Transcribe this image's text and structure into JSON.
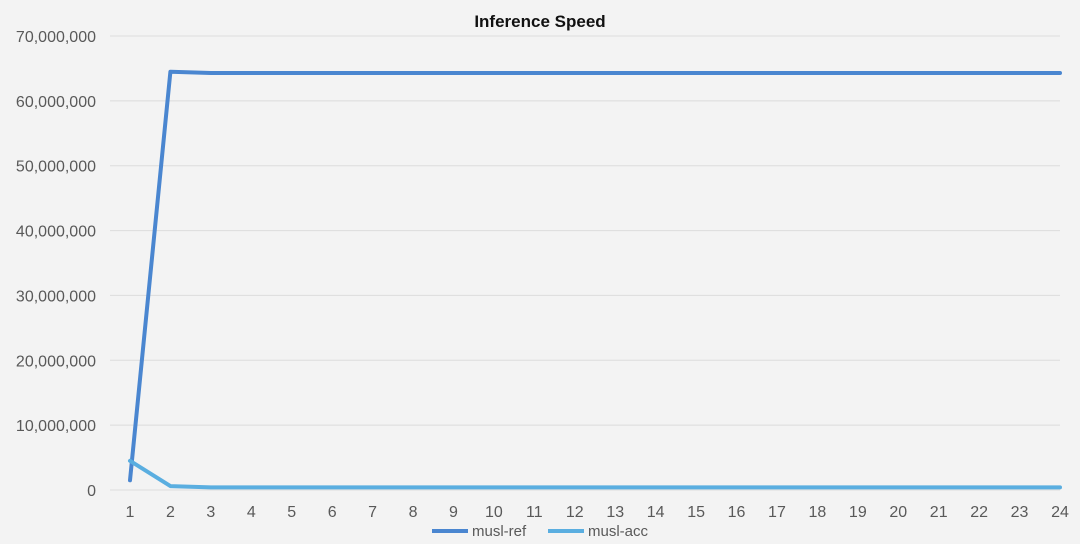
{
  "chart_data": {
    "type": "line",
    "title": "Inference Speed",
    "xlabel": "",
    "ylabel": "",
    "x": [
      "1",
      "2",
      "3",
      "4",
      "5",
      "6",
      "7",
      "8",
      "9",
      "10",
      "11",
      "12",
      "13",
      "14",
      "15",
      "16",
      "17",
      "18",
      "19",
      "20",
      "21",
      "22",
      "23",
      "24"
    ],
    "ylim": [
      0,
      70000000
    ],
    "yticks": [
      0,
      10000000,
      20000000,
      30000000,
      40000000,
      50000000,
      60000000,
      70000000
    ],
    "ytick_labels": [
      "0",
      "10,000,000",
      "20,000,000",
      "30,000,000",
      "40,000,000",
      "50,000,000",
      "60,000,000",
      "70,000,000"
    ],
    "grid": true,
    "legend_position": "bottom",
    "series": [
      {
        "name": "musl-ref",
        "color": "#4a86d0",
        "values": [
          1500000,
          64500000,
          64300000,
          64300000,
          64300000,
          64300000,
          64300000,
          64300000,
          64300000,
          64300000,
          64300000,
          64300000,
          64300000,
          64300000,
          64300000,
          64300000,
          64300000,
          64300000,
          64300000,
          64300000,
          64300000,
          64300000,
          64300000,
          64300000
        ]
      },
      {
        "name": "musl-acc",
        "color": "#5aaee0",
        "values": [
          4500000,
          600000,
          400000,
          400000,
          400000,
          400000,
          400000,
          400000,
          400000,
          400000,
          400000,
          400000,
          400000,
          400000,
          400000,
          400000,
          400000,
          400000,
          400000,
          400000,
          400000,
          400000,
          400000,
          400000
        ]
      }
    ]
  }
}
